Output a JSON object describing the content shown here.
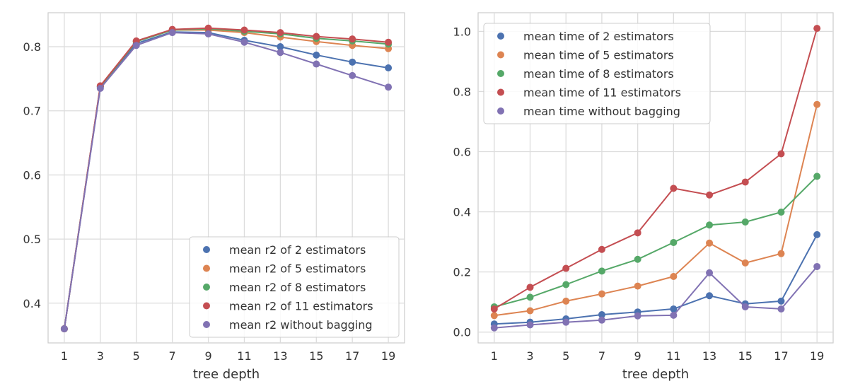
{
  "chart_data": [
    {
      "type": "line",
      "xlabel": "tree depth",
      "ylabel": "",
      "x": [
        1,
        3,
        5,
        7,
        9,
        11,
        13,
        15,
        17,
        19
      ],
      "xticks": [
        "1",
        "3",
        "5",
        "7",
        "9",
        "11",
        "13",
        "15",
        "17",
        "19"
      ],
      "yticks": [
        "0.4",
        "0.5",
        "0.6",
        "0.7",
        "0.8"
      ],
      "ytick_values": [
        0.4,
        0.5,
        0.6,
        0.7,
        0.8
      ],
      "ylim": [
        0.338,
        0.853
      ],
      "xlim": [
        0.1,
        19.9
      ],
      "grid": true,
      "legend": "lower-right",
      "series": [
        {
          "name": "mean r2 of 2 estimators",
          "color": "#4c72b0",
          "values": [
            0.36,
            0.737,
            0.805,
            0.823,
            0.822,
            0.81,
            0.8,
            0.787,
            0.776,
            0.767
          ]
        },
        {
          "name": "mean r2 of 5 estimators",
          "color": "#dd8452",
          "values": [
            0.36,
            0.738,
            0.808,
            0.826,
            0.826,
            0.822,
            0.815,
            0.808,
            0.802,
            0.797
          ]
        },
        {
          "name": "mean r2 of 8 estimators",
          "color": "#55a868",
          "values": [
            0.36,
            0.738,
            0.808,
            0.826,
            0.828,
            0.824,
            0.82,
            0.813,
            0.809,
            0.804
          ]
        },
        {
          "name": "mean r2 of 11 estimators",
          "color": "#c44e52",
          "values": [
            0.36,
            0.739,
            0.809,
            0.827,
            0.829,
            0.826,
            0.822,
            0.816,
            0.812,
            0.807
          ]
        },
        {
          "name": "mean r2 without bagging",
          "color": "#8172b3",
          "values": [
            0.36,
            0.735,
            0.802,
            0.822,
            0.82,
            0.807,
            0.791,
            0.773,
            0.755,
            0.737
          ]
        }
      ]
    },
    {
      "type": "line",
      "xlabel": "tree depth",
      "ylabel": "",
      "x": [
        1,
        3,
        5,
        7,
        9,
        11,
        13,
        15,
        17,
        19
      ],
      "xticks": [
        "1",
        "3",
        "5",
        "7",
        "9",
        "11",
        "13",
        "15",
        "17",
        "19"
      ],
      "yticks": [
        "0.0",
        "0.2",
        "0.4",
        "0.6",
        "0.8",
        "1.0"
      ],
      "ytick_values": [
        0,
        0.2,
        0.4,
        0.6,
        0.8,
        1.0
      ],
      "ylim": [
        -0.036,
        1.062
      ],
      "xlim": [
        0.1,
        19.9
      ],
      "grid": true,
      "legend": "upper-left",
      "series": [
        {
          "name": "mean time of 2 estimators",
          "color": "#4c72b0",
          "values": [
            0.027,
            0.033,
            0.044,
            0.058,
            0.067,
            0.077,
            0.121,
            0.094,
            0.103,
            0.324
          ]
        },
        {
          "name": "mean time of 5 estimators",
          "color": "#dd8452",
          "values": [
            0.055,
            0.071,
            0.103,
            0.127,
            0.153,
            0.185,
            0.296,
            0.23,
            0.261,
            0.757
          ]
        },
        {
          "name": "mean time of 8 estimators",
          "color": "#55a868",
          "values": [
            0.084,
            0.116,
            0.158,
            0.203,
            0.242,
            0.298,
            0.356,
            0.366,
            0.399,
            0.518
          ]
        },
        {
          "name": "mean time of 11 estimators",
          "color": "#c44e52",
          "values": [
            0.077,
            0.149,
            0.212,
            0.275,
            0.33,
            0.478,
            0.456,
            0.499,
            0.593,
            1.01
          ]
        },
        {
          "name": "mean time without bagging",
          "color": "#8172b3",
          "values": [
            0.014,
            0.024,
            0.033,
            0.04,
            0.054,
            0.056,
            0.197,
            0.084,
            0.077,
            0.218
          ]
        }
      ]
    }
  ]
}
